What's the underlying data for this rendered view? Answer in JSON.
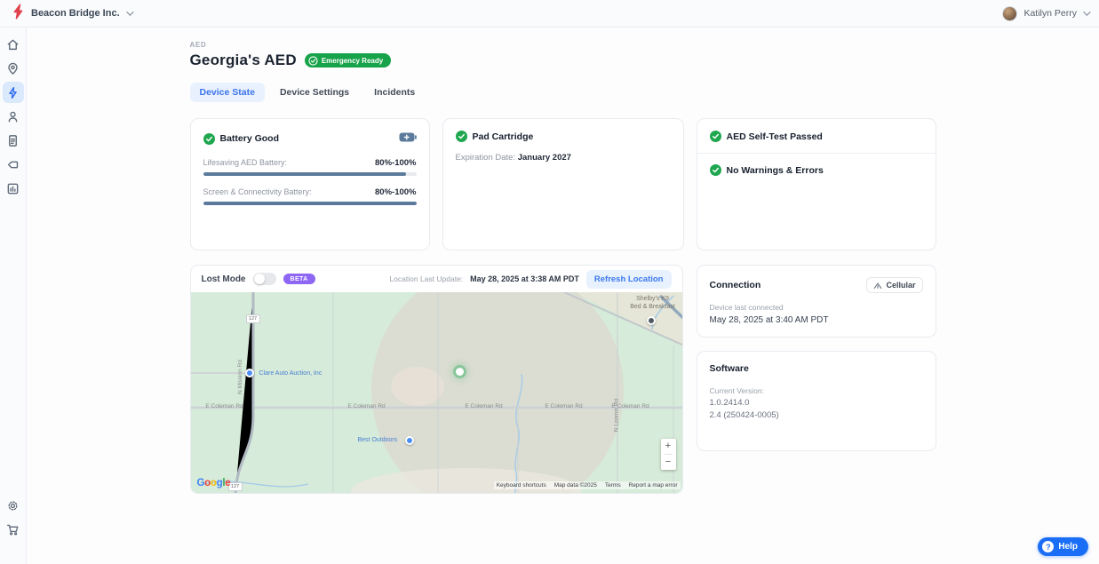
{
  "topbar": {
    "org_name": "Beacon Bridge Inc.",
    "user_name": "Katilyn Perry"
  },
  "sidebar": {
    "icons": [
      "home-icon",
      "location-pin-icon",
      "lightning-bolt-icon",
      "user-icon",
      "document-icon",
      "tag-icon",
      "bar-chart-icon"
    ],
    "active_icon": "lightning-bolt-icon",
    "bottom_icons": [
      "gear-icon",
      "shopping-cart-icon"
    ]
  },
  "header": {
    "breadcrumb": "AED",
    "title": "Georgia's AED",
    "status_badge": "Emergency Ready"
  },
  "tabs": [
    {
      "label": "Device State",
      "active": true
    },
    {
      "label": "Device Settings",
      "active": false
    },
    {
      "label": "Incidents",
      "active": false
    }
  ],
  "battery_card": {
    "title": "Battery Good",
    "icon": "battery-plus-icon",
    "rows": [
      {
        "label": "Lifesaving AED Battery:",
        "value": "80%-100%",
        "percent": 95
      },
      {
        "label": "Screen & Connectivity Battery:",
        "value": "80%-100%",
        "percent": 100
      }
    ]
  },
  "pad_card": {
    "title": "Pad Cartridge",
    "expiration_label": "Expiration Date: ",
    "expiration_value": "January 2027"
  },
  "selftest_card": {
    "title": "AED Self-Test Passed",
    "second_title": "No Warnings & Errors"
  },
  "map_card": {
    "lost_mode_label": "Lost Mode",
    "lost_mode_on": false,
    "beta_label": "BETA",
    "last_update_label": "Location Last Update:",
    "last_update_value": "May 28, 2025 at 3:38 AM PDT",
    "refresh_button": "Refresh Location",
    "map": {
      "poi_clare": "Clare Auto Auction, Inc",
      "poi_shelby_line1": "Shelby's K9",
      "poi_shelby_line2": "Bed & Breakfast",
      "poi_best": "Best Outdoors",
      "road_e_coleman": "E Coleman Rd",
      "road_n_loomis": "N Loomis Rd",
      "road_n_mission": "N Mission Rd",
      "route_shield": "127",
      "google_letters": [
        "G",
        "o",
        "o",
        "g",
        "l",
        "e"
      ],
      "attribution": [
        "Keyboard shortcuts",
        "Map data ©2025",
        "Terms",
        "Report a map error"
      ],
      "zoom_in": "+",
      "zoom_out": "−"
    }
  },
  "connection_card": {
    "title": "Connection",
    "chip_label": "Cellular",
    "chip_icon": "signal-icon",
    "last_connected_label": "Device last connected",
    "last_connected_value": "May 28, 2025 at 3:40 AM PDT"
  },
  "software_card": {
    "title": "Software",
    "version_label": "Current Version:",
    "versions": [
      "1.0.2414.0",
      "2.4 (250424-0005)"
    ]
  },
  "help_button": {
    "label": "Help",
    "icon_glyph": "?"
  },
  "colors": {
    "brand_red": "#e0414d",
    "accent_blue": "#2f6bef",
    "success_green": "#17a34a",
    "beta_purple": "#8e66f4",
    "battery_bar_slate": "#5b7a9c",
    "map_green": "#d6ebd9"
  }
}
